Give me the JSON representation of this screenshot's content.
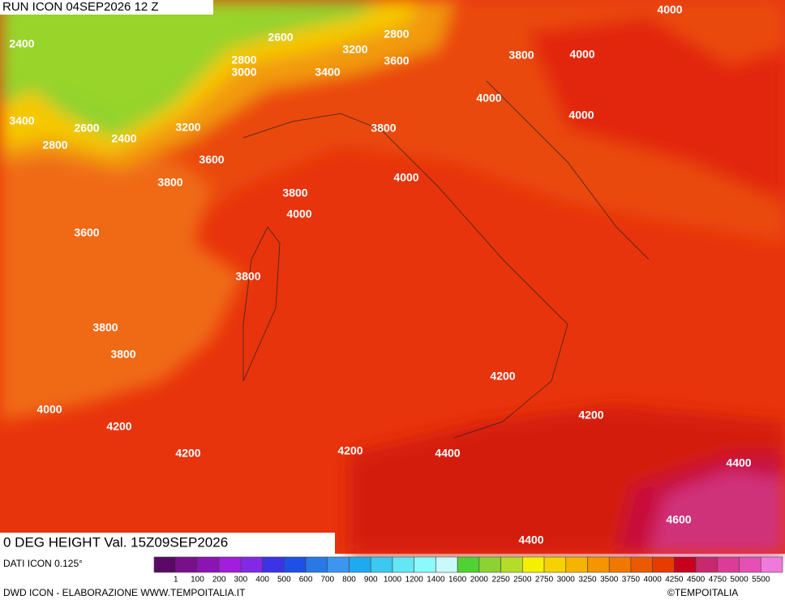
{
  "header": {
    "title": "RUN ICON 04SEP2026 12 Z"
  },
  "map": {
    "field_label": "0 DEG HEIGHT Val. 15Z09SEP2026",
    "contour_labels": [
      "2400",
      "2600",
      "2800",
      "3200",
      "3600",
      "3800",
      "4000",
      "4000",
      "2800",
      "3000",
      "3400",
      "3400",
      "2600",
      "2800",
      "2400",
      "3200",
      "4000",
      "4000",
      "3800",
      "3600",
      "3800",
      "4000",
      "3800",
      "4000",
      "3600",
      "3800",
      "3800",
      "3800",
      "4200",
      "4000",
      "4200",
      "4200",
      "4200",
      "4200",
      "4400",
      "4400",
      "4600",
      "4400"
    ]
  },
  "legend": {
    "source": "DATI ICON 0.125°",
    "labels": [
      1,
      100,
      200,
      300,
      400,
      500,
      600,
      700,
      800,
      900,
      1000,
      1200,
      1400,
      1600,
      2000,
      2250,
      2500,
      2750,
      3000,
      3250,
      3500,
      3750,
      4000,
      4250,
      4500,
      4750,
      5000,
      5500
    ],
    "colors": [
      "#5a0a64",
      "#78108c",
      "#8c14b4",
      "#a01edc",
      "#8228e6",
      "#5a28e6",
      "#3c32e6",
      "#1e50e6",
      "#2878e6",
      "#3c96f0",
      "#1eaaf0",
      "#3cc8f0",
      "#64e6f5",
      "#8cfafa",
      "#c8fafa",
      "#82e682",
      "#50d232",
      "#8cd232",
      "#b4dc28",
      "#f5f000",
      "#f5d200",
      "#f5b400",
      "#f59600",
      "#f07800",
      "#eb5a00",
      "#e63c00",
      "#dc1e00",
      "#c8001e",
      "#c8286e",
      "#dc3c96",
      "#e650b4",
      "#f07adc"
    ]
  },
  "footer": {
    "credit": "DWD ICON - ELABORAZIONE WWW.TEMPOITALIA.IT",
    "copyright": "©TEMPOITALIA"
  }
}
